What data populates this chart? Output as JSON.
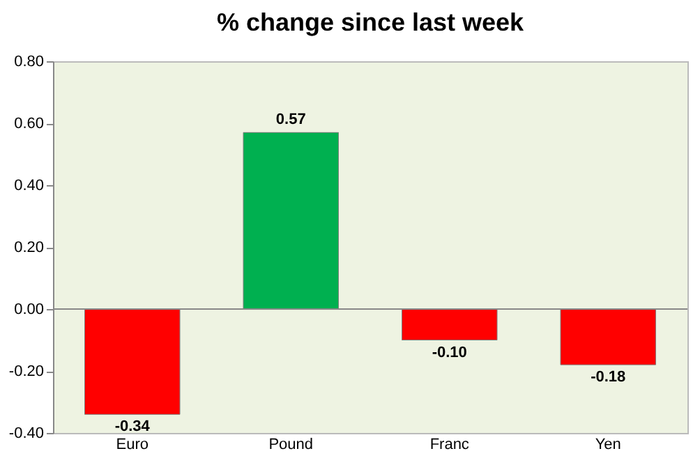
{
  "chart_data": {
    "type": "bar",
    "title": "% change since last week",
    "categories": [
      "Euro",
      "Pound",
      "Franc",
      "Yen"
    ],
    "values": [
      -0.34,
      0.57,
      -0.1,
      -0.18
    ],
    "colors": [
      "#ff0000",
      "#00b050",
      "#ff0000",
      "#ff0000"
    ],
    "value_labels": [
      "-0.34",
      "0.57",
      "-0.10",
      "-0.18"
    ],
    "ylim": [
      -0.4,
      0.8
    ],
    "yticks": [
      {
        "value": -0.4,
        "label": "-0.40"
      },
      {
        "value": -0.2,
        "label": "-0.20"
      },
      {
        "value": 0,
        "label": "0.00"
      },
      {
        "value": 0.2,
        "label": "0.20"
      },
      {
        "value": 0.4,
        "label": "0.40"
      },
      {
        "value": 0.6,
        "label": "0.60"
      },
      {
        "value": 0.8,
        "label": "0.80"
      }
    ],
    "legend": false
  }
}
